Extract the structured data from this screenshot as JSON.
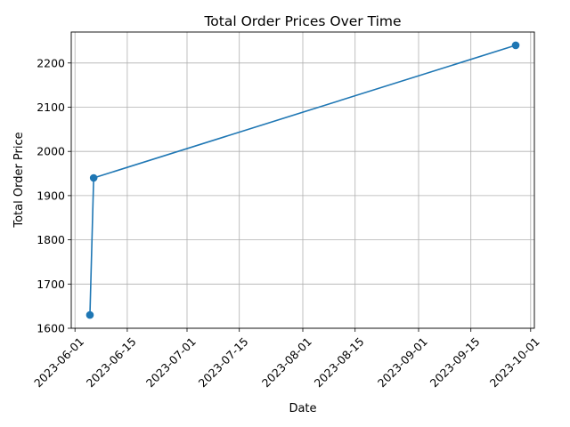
{
  "chart_data": {
    "type": "line",
    "title": "Total Order Prices Over Time",
    "xlabel": "Date",
    "ylabel": "Total Order Price",
    "x_ticks": [
      "2023-06-01",
      "2023-06-15",
      "2023-07-01",
      "2023-07-15",
      "2023-08-01",
      "2023-08-15",
      "2023-09-01",
      "2023-09-15",
      "2023-10-01"
    ],
    "y_ticks": [
      1600,
      1700,
      1800,
      1900,
      2000,
      2100,
      2200
    ],
    "xlim": [
      "2023-05-31",
      "2023-10-02"
    ],
    "ylim": [
      1600,
      2270
    ],
    "grid": true,
    "series": [
      {
        "color": "#1f77b4",
        "marker": "circle",
        "points": [
          {
            "x": "2023-06-05",
            "y": 1630
          },
          {
            "x": "2023-06-06",
            "y": 1940
          },
          {
            "x": "2023-09-27",
            "y": 2240
          }
        ]
      }
    ]
  }
}
